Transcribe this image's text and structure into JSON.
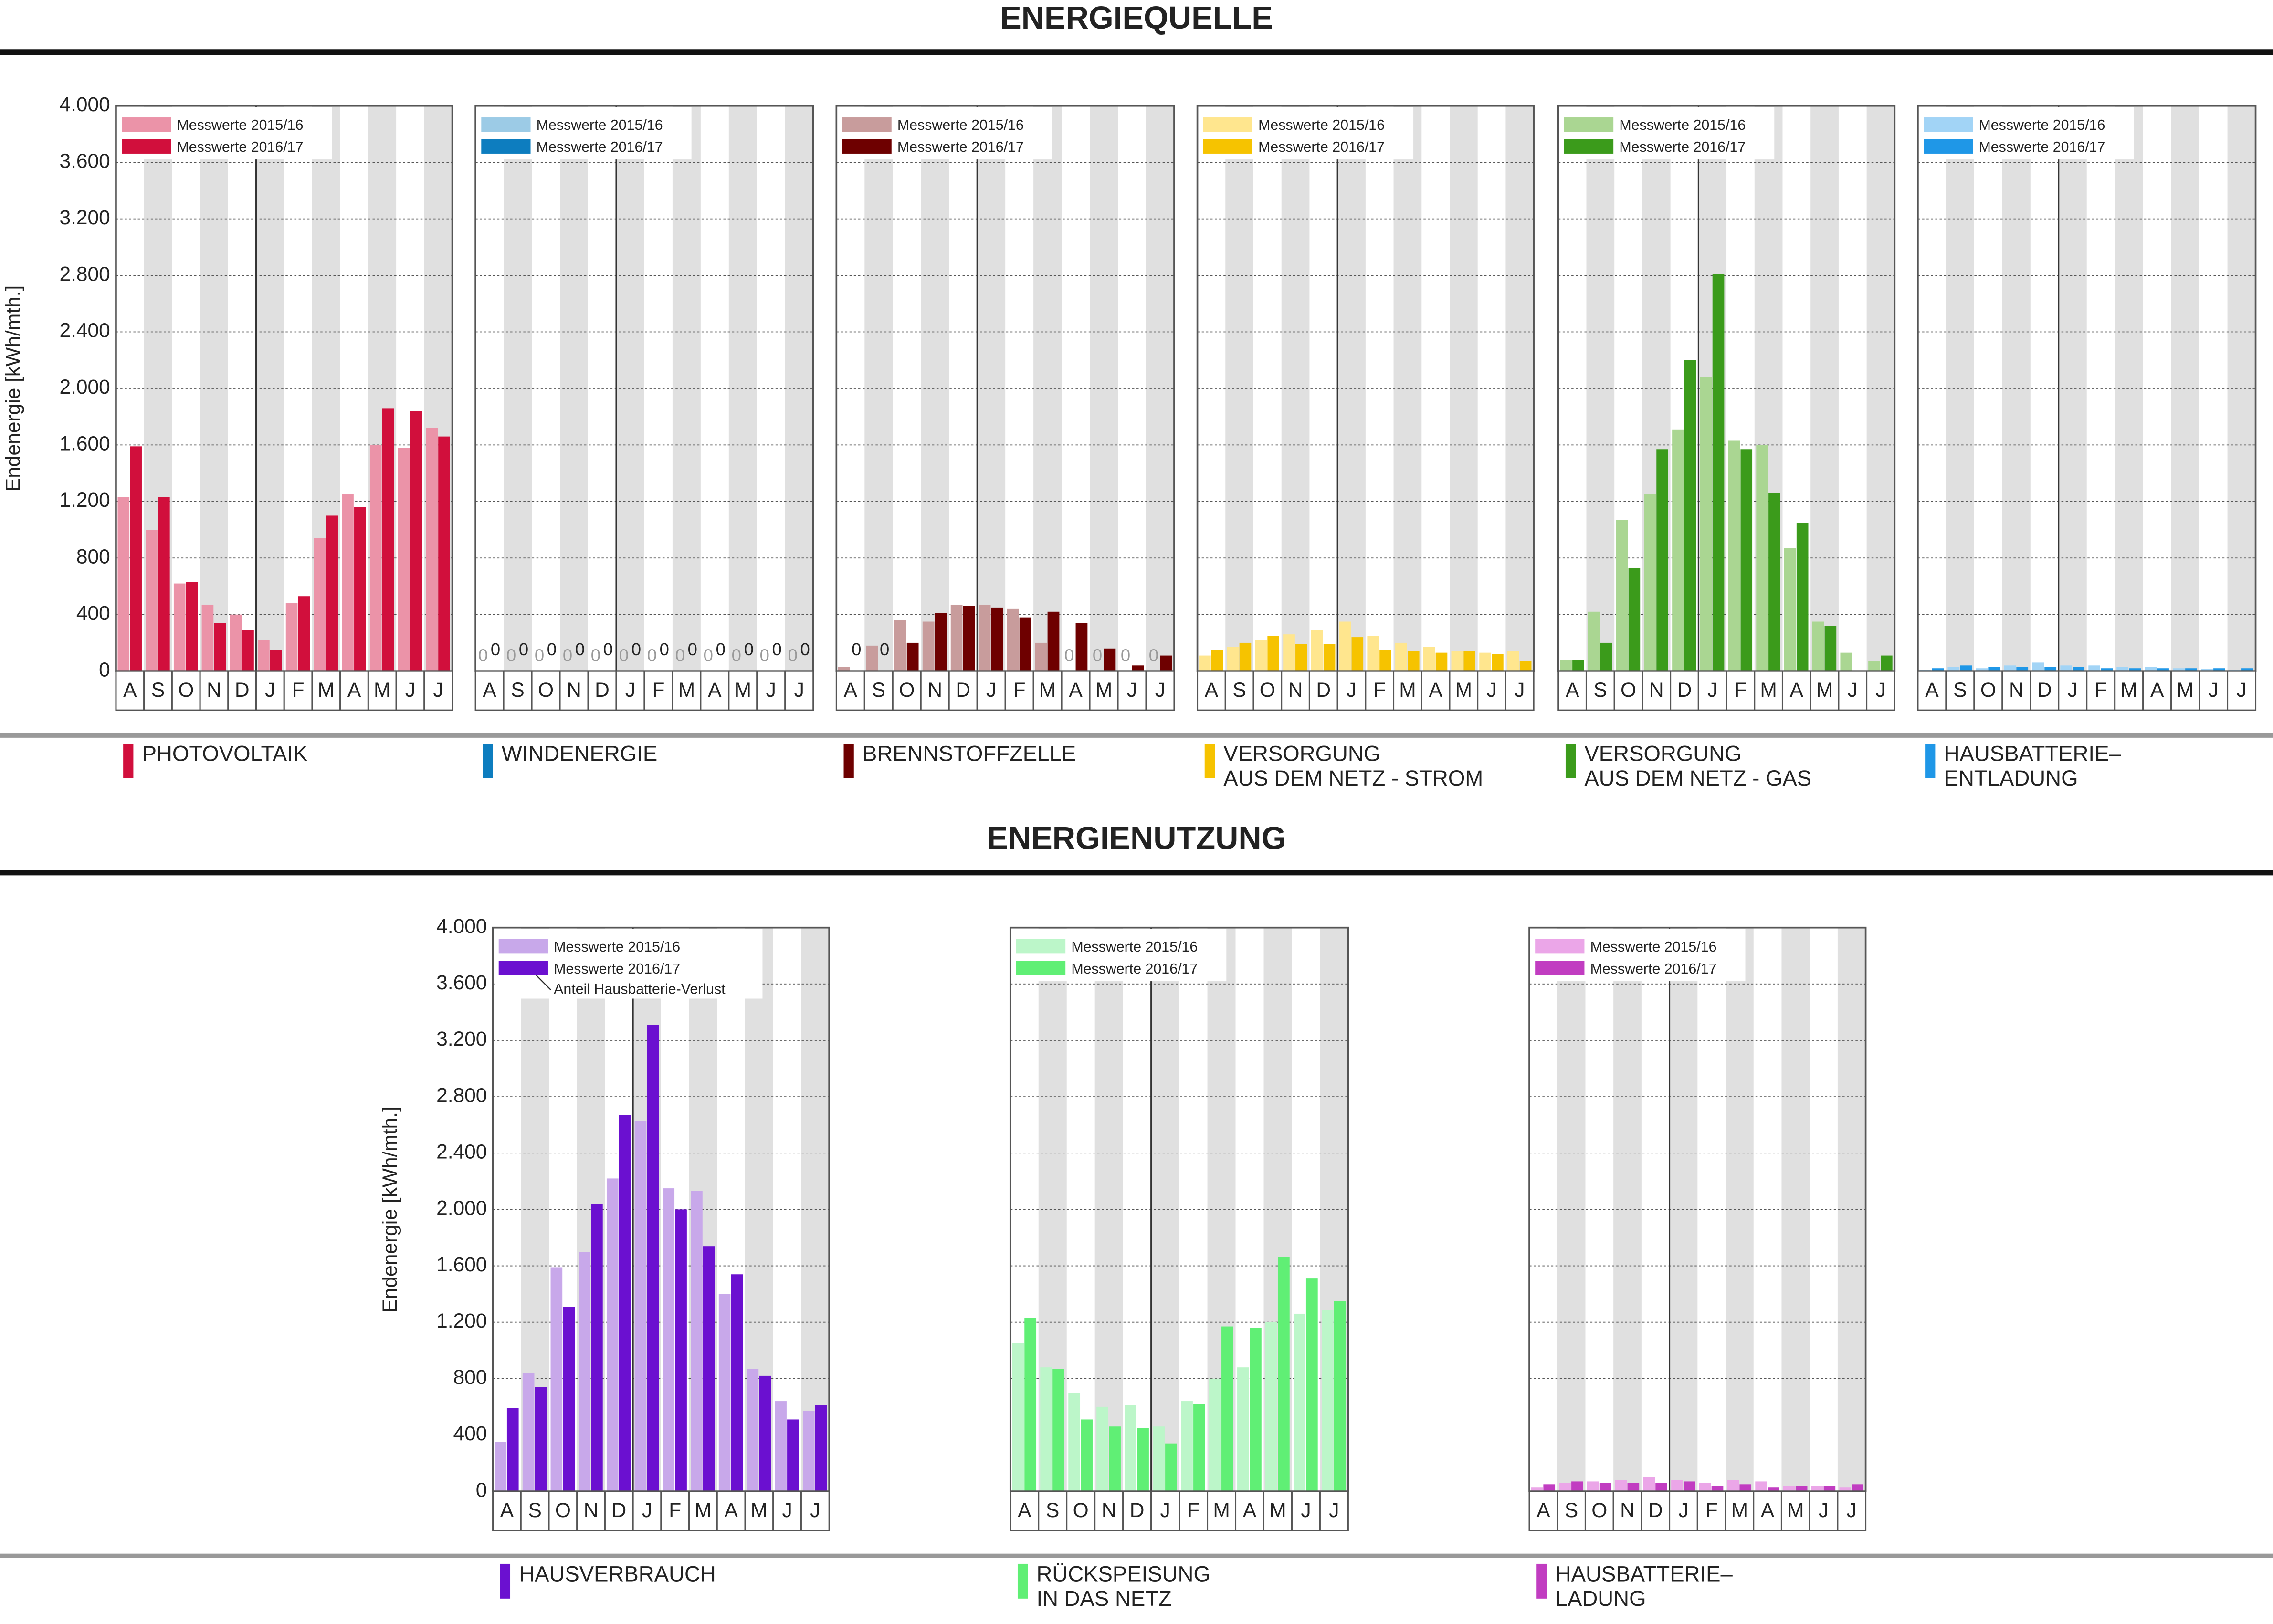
{
  "sections": [
    "ENERGIEQUELLE",
    "ENERGIENUTZUNG"
  ],
  "chart_data": [
    {
      "type": "bar",
      "title_lines": [
        "PHOTOVOLTAIK"
      ],
      "ylabel": "Endenergie [kWh/mth.]",
      "categories": [
        "A",
        "S",
        "O",
        "N",
        "D",
        "J",
        "F",
        "M",
        "A",
        "M",
        "J",
        "J"
      ],
      "series": [
        {
          "name": "Messwerte 2015/16",
          "color": "#eb93a8",
          "values": [
            1230,
            1000,
            620,
            470,
            400,
            220,
            480,
            940,
            1250,
            1600,
            1580,
            1720
          ]
        },
        {
          "name": "Messwerte 2016/17",
          "color": "#d10f3c",
          "values": [
            1590,
            1230,
            630,
            340,
            290,
            150,
            530,
            1100,
            1160,
            1860,
            1840,
            1660
          ]
        }
      ],
      "ylim": [
        0,
        4000
      ],
      "yticks": [
        0,
        400,
        800,
        {
          "value": 1200,
          "label": "1.200"
        },
        {
          "value": 1600,
          "label": "1.600"
        },
        {
          "value": 2000,
          "label": "2.000"
        },
        {
          "value": 2400,
          "label": "2.400"
        },
        {
          "value": 2800,
          "label": "2.800"
        },
        {
          "value": 3200,
          "label": "3.200"
        },
        {
          "value": 3600,
          "label": "3.600"
        },
        {
          "value": 4000,
          "label": "4.000"
        }
      ],
      "grid": true
    },
    {
      "type": "bar",
      "title_lines": [
        "WINDENERGIE"
      ],
      "zero_labels": true,
      "categories": [
        "A",
        "S",
        "O",
        "N",
        "D",
        "J",
        "F",
        "M",
        "A",
        "M",
        "J",
        "J"
      ],
      "series": [
        {
          "name": "Messwerte 2015/16",
          "color": "#9ccbe6",
          "values": [
            0,
            0,
            0,
            0,
            0,
            0,
            0,
            0,
            0,
            0,
            0,
            0
          ]
        },
        {
          "name": "Messwerte 2016/17",
          "color": "#0d7dbf",
          "values": [
            0,
            0,
            0,
            0,
            0,
            0,
            0,
            0,
            0,
            0,
            0,
            0
          ]
        }
      ],
      "ylim": [
        0,
        4000
      ],
      "yticks": [
        0,
        400,
        800,
        1200,
        1600,
        2000,
        2400,
        2800,
        3200,
        3600,
        4000
      ],
      "grid": true
    },
    {
      "type": "bar",
      "title_lines": [
        "BRENNSTOFFZELLE"
      ],
      "zero_labels": true,
      "categories": [
        "A",
        "S",
        "O",
        "N",
        "D",
        "J",
        "F",
        "M",
        "A",
        "M",
        "J",
        "J"
      ],
      "series": [
        {
          "name": "Messwerte 2015/16",
          "color": "#c89c9c",
          "values": [
            30,
            180,
            360,
            350,
            470,
            470,
            440,
            200,
            0,
            0,
            0,
            0
          ]
        },
        {
          "name": "Messwerte 2016/17",
          "color": "#6e0000",
          "values": [
            0,
            0,
            200,
            410,
            460,
            450,
            380,
            420,
            340,
            160,
            40,
            110
          ]
        }
      ],
      "ylim": [
        0,
        4000
      ],
      "yticks": [
        0,
        400,
        800,
        1200,
        1600,
        2000,
        2400,
        2800,
        3200,
        3600,
        4000
      ],
      "grid": true
    },
    {
      "type": "bar",
      "title_lines": [
        "VERSORGUNG",
        "AUS DEM NETZ - STROM"
      ],
      "categories": [
        "A",
        "S",
        "O",
        "N",
        "D",
        "J",
        "F",
        "M",
        "A",
        "M",
        "J",
        "J"
      ],
      "series": [
        {
          "name": "Messwerte 2015/16",
          "color": "#ffe68e",
          "values": [
            110,
            170,
            220,
            260,
            290,
            350,
            250,
            200,
            170,
            140,
            130,
            140
          ]
        },
        {
          "name": "Messwerte 2016/17",
          "color": "#f6c300",
          "values": [
            150,
            200,
            250,
            190,
            190,
            240,
            150,
            140,
            130,
            140,
            120,
            70
          ]
        }
      ],
      "ylim": [
        0,
        4000
      ],
      "yticks": [
        0,
        400,
        800,
        1200,
        1600,
        2000,
        2400,
        2800,
        3200,
        3600,
        4000
      ],
      "grid": true
    },
    {
      "type": "bar",
      "title_lines": [
        "VERSORGUNG",
        "AUS DEM NETZ - GAS"
      ],
      "categories": [
        "A",
        "S",
        "O",
        "N",
        "D",
        "J",
        "F",
        "M",
        "A",
        "M",
        "J",
        "J"
      ],
      "series": [
        {
          "name": "Messwerte 2015/16",
          "color": "#aad692",
          "values": [
            80,
            420,
            1070,
            1250,
            1710,
            2080,
            1630,
            1600,
            870,
            350,
            130,
            70
          ]
        },
        {
          "name": "Messwerte 2016/17",
          "color": "#3b9b1b",
          "values": [
            80,
            200,
            730,
            1570,
            2200,
            2810,
            1570,
            1260,
            1050,
            320,
            0,
            110
          ]
        }
      ],
      "ylim": [
        0,
        4000
      ],
      "yticks": [
        0,
        400,
        800,
        1200,
        1600,
        2000,
        2400,
        2800,
        3200,
        3600,
        4000
      ],
      "grid": true
    },
    {
      "type": "bar",
      "title_lines": [
        "HAUSBATTERIE–",
        "ENTLADUNG"
      ],
      "categories": [
        "A",
        "S",
        "O",
        "N",
        "D",
        "J",
        "F",
        "M",
        "A",
        "M",
        "J",
        "J"
      ],
      "series": [
        {
          "name": "Messwerte 2015/16",
          "color": "#a2d4f6",
          "values": [
            10,
            30,
            20,
            40,
            60,
            40,
            40,
            30,
            30,
            20,
            15,
            10
          ]
        },
        {
          "name": "Messwerte 2016/17",
          "color": "#1f97e7",
          "values": [
            20,
            40,
            30,
            30,
            30,
            30,
            20,
            20,
            20,
            20,
            20,
            20
          ]
        }
      ],
      "ylim": [
        0,
        4000
      ],
      "yticks": [
        0,
        400,
        800,
        1200,
        1600,
        2000,
        2400,
        2800,
        3200,
        3600,
        4000
      ],
      "grid": true
    },
    {
      "type": "bar",
      "title_lines": [
        "HAUSVERBRAUCH"
      ],
      "ylabel": "Endenergie [kWh/mth.]",
      "legend_note": "Anteil Hausbatterie-Verlust",
      "categories": [
        "A",
        "S",
        "O",
        "N",
        "D",
        "J",
        "F",
        "M",
        "A",
        "M",
        "J",
        "J"
      ],
      "series": [
        {
          "name": "Messwerte 2015/16",
          "color": "#c8a8ea",
          "values": [
            350,
            840,
            1590,
            1700,
            2220,
            2630,
            2150,
            2130,
            1400,
            870,
            640,
            570
          ]
        },
        {
          "name": "Messwerte 2016/17",
          "color": "#6b10d0",
          "values": [
            590,
            740,
            1310,
            2040,
            2670,
            3310,
            2000,
            1740,
            1540,
            820,
            510,
            610
          ]
        }
      ],
      "ylim": [
        0,
        4000
      ],
      "yticks": [
        0,
        400,
        800,
        {
          "value": 1200,
          "label": "1.200"
        },
        {
          "value": 1600,
          "label": "1.600"
        },
        {
          "value": 2000,
          "label": "2.000"
        },
        {
          "value": 2400,
          "label": "2.400"
        },
        {
          "value": 2800,
          "label": "2.800"
        },
        {
          "value": 3200,
          "label": "3.200"
        },
        {
          "value": 3600,
          "label": "3.600"
        },
        {
          "value": 4000,
          "label": "4.000"
        }
      ],
      "grid": true
    },
    {
      "type": "bar",
      "title_lines": [
        "RÜCKSPEISUNG",
        "IN DAS NETZ"
      ],
      "categories": [
        "A",
        "S",
        "O",
        "N",
        "D",
        "J",
        "F",
        "M",
        "A",
        "M",
        "J",
        "J"
      ],
      "series": [
        {
          "name": "Messwerte 2015/16",
          "color": "#bcf6c9",
          "values": [
            1050,
            880,
            700,
            600,
            610,
            460,
            640,
            800,
            880,
            1200,
            1260,
            1290
          ]
        },
        {
          "name": "Messwerte 2016/17",
          "color": "#60ef75",
          "values": [
            1230,
            870,
            510,
            460,
            450,
            340,
            620,
            1170,
            1160,
            1660,
            1510,
            1350
          ]
        }
      ],
      "ylim": [
        0,
        4000
      ],
      "yticks": [
        0,
        400,
        800,
        1200,
        1600,
        2000,
        2400,
        2800,
        3200,
        3600,
        4000
      ],
      "grid": true
    },
    {
      "type": "bar",
      "title_lines": [
        "HAUSBATTERIE–",
        "LADUNG"
      ],
      "categories": [
        "A",
        "S",
        "O",
        "N",
        "D",
        "J",
        "F",
        "M",
        "A",
        "M",
        "J",
        "J"
      ],
      "series": [
        {
          "name": "Messwerte 2015/16",
          "color": "#eba6e8",
          "values": [
            30,
            60,
            70,
            80,
            100,
            80,
            60,
            80,
            70,
            40,
            40,
            30
          ]
        },
        {
          "name": "Messwerte 2016/17",
          "color": "#c13dc1",
          "values": [
            50,
            70,
            60,
            60,
            60,
            70,
            40,
            50,
            30,
            40,
            40,
            50
          ]
        }
      ],
      "ylim": [
        0,
        4000
      ],
      "yticks": [
        0,
        400,
        800,
        1200,
        1600,
        2000,
        2400,
        2800,
        3200,
        3600,
        4000
      ],
      "grid": true
    }
  ]
}
